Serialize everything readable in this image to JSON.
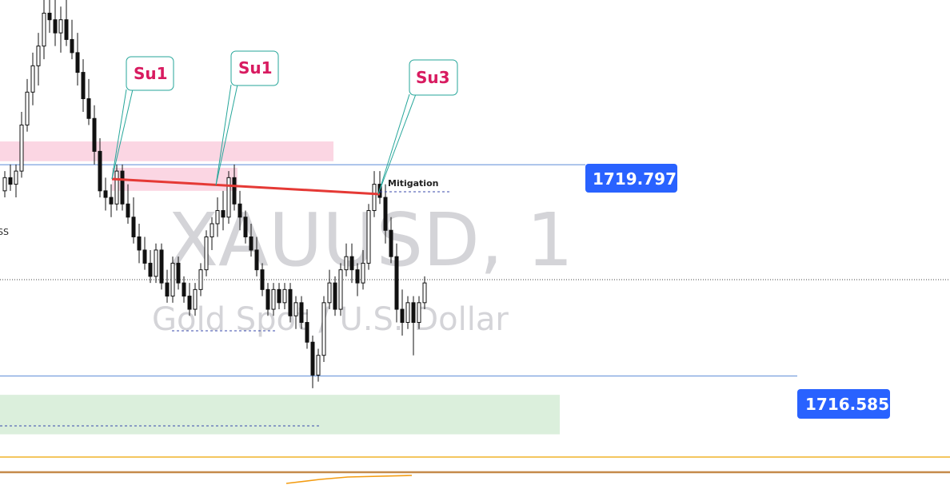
{
  "chart_data": {
    "type": "candlestick",
    "watermark": {
      "symbol": "XAUUSD, 1",
      "description": "Gold Spot / U.S. Dollar"
    },
    "price_range": [
      1715.5,
      1722.3
    ],
    "price_lines": [
      {
        "label": "1719.797",
        "price": 1719.797,
        "color": "#2962ff"
      },
      {
        "label": "1716.585",
        "price": 1716.585,
        "color": "#2962ff"
      }
    ],
    "current_price": 1718.05,
    "callouts": [
      {
        "text": "Su1"
      },
      {
        "text": "Su1"
      },
      {
        "text": "Su3"
      }
    ],
    "annotations": {
      "mitigation": "Mitigation",
      "edge_text": "SS"
    },
    "zones": [
      {
        "kind": "supply",
        "color": "#f8bbd0",
        "from": 1720.15,
        "to": 1719.85
      },
      {
        "kind": "supply",
        "color": "#f8bbd0",
        "from": 1719.75,
        "to": 1719.4
      },
      {
        "kind": "demand",
        "color": "#c8e6c9",
        "from": 1716.3,
        "to": 1715.7
      }
    ],
    "candles": [
      [
        1719.4,
        1719.7,
        1719.3,
        1719.6
      ],
      [
        1719.6,
        1719.8,
        1719.4,
        1719.5
      ],
      [
        1719.5,
        1719.8,
        1719.3,
        1719.7
      ],
      [
        1719.7,
        1720.6,
        1719.6,
        1720.4
      ],
      [
        1720.4,
        1721.1,
        1720.3,
        1720.9
      ],
      [
        1720.9,
        1721.5,
        1720.7,
        1721.3
      ],
      [
        1721.3,
        1721.8,
        1721.0,
        1721.6
      ],
      [
        1721.6,
        1722.3,
        1721.4,
        1722.1
      ],
      [
        1722.1,
        1722.3,
        1721.8,
        1722.0
      ],
      [
        1722.0,
        1722.3,
        1721.6,
        1721.8
      ],
      [
        1721.8,
        1722.2,
        1721.5,
        1722.0
      ],
      [
        1722.0,
        1722.3,
        1721.6,
        1721.7
      ],
      [
        1721.7,
        1722.0,
        1721.4,
        1721.5
      ],
      [
        1721.5,
        1721.8,
        1721.0,
        1721.2
      ],
      [
        1721.2,
        1721.4,
        1720.6,
        1720.8
      ],
      [
        1720.8,
        1721.1,
        1720.4,
        1720.5
      ],
      [
        1720.5,
        1720.7,
        1719.8,
        1720.0
      ],
      [
        1720.0,
        1720.2,
        1719.3,
        1719.4
      ],
      [
        1719.4,
        1719.6,
        1719.1,
        1719.3
      ],
      [
        1719.3,
        1719.5,
        1719.0,
        1719.2
      ],
      [
        1719.2,
        1719.8,
        1719.1,
        1719.7
      ],
      [
        1719.7,
        1719.8,
        1719.1,
        1719.2
      ],
      [
        1719.2,
        1719.5,
        1718.9,
        1719.0
      ],
      [
        1719.0,
        1719.3,
        1718.6,
        1718.7
      ],
      [
        1718.7,
        1718.9,
        1718.3,
        1718.5
      ],
      [
        1718.5,
        1718.7,
        1718.2,
        1718.3
      ],
      [
        1718.3,
        1718.5,
        1718.0,
        1718.1
      ],
      [
        1718.1,
        1718.6,
        1718.0,
        1718.5
      ],
      [
        1718.5,
        1718.6,
        1717.9,
        1718.0
      ],
      [
        1718.0,
        1718.2,
        1717.7,
        1717.8
      ],
      [
        1717.8,
        1718.4,
        1717.7,
        1718.3
      ],
      [
        1718.3,
        1718.4,
        1717.9,
        1718.0
      ],
      [
        1718.0,
        1718.1,
        1717.7,
        1717.8
      ],
      [
        1717.8,
        1718.0,
        1717.5,
        1717.6
      ],
      [
        1717.6,
        1718.0,
        1717.5,
        1717.9
      ],
      [
        1717.9,
        1718.3,
        1717.8,
        1718.2
      ],
      [
        1718.2,
        1718.8,
        1718.1,
        1718.7
      ],
      [
        1718.7,
        1719.0,
        1718.5,
        1718.9
      ],
      [
        1718.9,
        1719.3,
        1718.7,
        1719.1
      ],
      [
        1719.1,
        1719.4,
        1718.8,
        1719.0
      ],
      [
        1719.0,
        1719.7,
        1718.9,
        1719.6
      ],
      [
        1719.6,
        1719.8,
        1719.1,
        1719.2
      ],
      [
        1719.2,
        1719.4,
        1718.8,
        1719.0
      ],
      [
        1719.0,
        1719.1,
        1718.6,
        1718.7
      ],
      [
        1718.7,
        1718.9,
        1718.4,
        1718.5
      ],
      [
        1718.5,
        1718.7,
        1718.1,
        1718.2
      ],
      [
        1718.2,
        1718.3,
        1717.8,
        1717.9
      ],
      [
        1717.9,
        1718.0,
        1717.5,
        1717.6
      ],
      [
        1717.6,
        1718.0,
        1717.5,
        1717.9
      ],
      [
        1717.9,
        1718.0,
        1717.6,
        1717.7
      ],
      [
        1717.7,
        1718.0,
        1717.6,
        1717.9
      ],
      [
        1717.9,
        1718.0,
        1717.4,
        1717.5
      ],
      [
        1717.5,
        1717.8,
        1717.3,
        1717.7
      ],
      [
        1717.7,
        1717.8,
        1717.3,
        1717.4
      ],
      [
        1717.4,
        1717.6,
        1717.0,
        1717.1
      ],
      [
        1717.1,
        1717.2,
        1716.4,
        1716.6
      ],
      [
        1716.6,
        1717.0,
        1716.5,
        1716.9
      ],
      [
        1716.9,
        1717.8,
        1716.8,
        1717.7
      ],
      [
        1717.7,
        1718.2,
        1717.6,
        1718.0
      ],
      [
        1718.0,
        1718.1,
        1717.5,
        1717.6
      ],
      [
        1717.6,
        1718.3,
        1717.5,
        1718.2
      ],
      [
        1718.2,
        1718.6,
        1718.1,
        1718.4
      ],
      [
        1718.4,
        1718.6,
        1718.0,
        1718.2
      ],
      [
        1718.2,
        1718.3,
        1717.8,
        1718.0
      ],
      [
        1718.0,
        1718.5,
        1717.9,
        1718.3
      ],
      [
        1718.3,
        1719.2,
        1718.2,
        1719.1
      ],
      [
        1719.1,
        1719.7,
        1719.0,
        1719.5
      ],
      [
        1719.5,
        1719.7,
        1719.2,
        1719.3
      ],
      [
        1719.3,
        1719.5,
        1718.6,
        1718.8
      ],
      [
        1718.8,
        1719.0,
        1718.3,
        1718.4
      ],
      [
        1718.4,
        1718.6,
        1717.4,
        1717.6
      ],
      [
        1717.6,
        1717.9,
        1717.2,
        1717.4
      ],
      [
        1717.4,
        1717.8,
        1717.3,
        1717.7
      ],
      [
        1717.7,
        1717.8,
        1716.9,
        1717.4
      ],
      [
        1717.4,
        1717.8,
        1717.3,
        1717.7
      ],
      [
        1717.7,
        1718.1,
        1717.6,
        1718.0
      ]
    ]
  }
}
